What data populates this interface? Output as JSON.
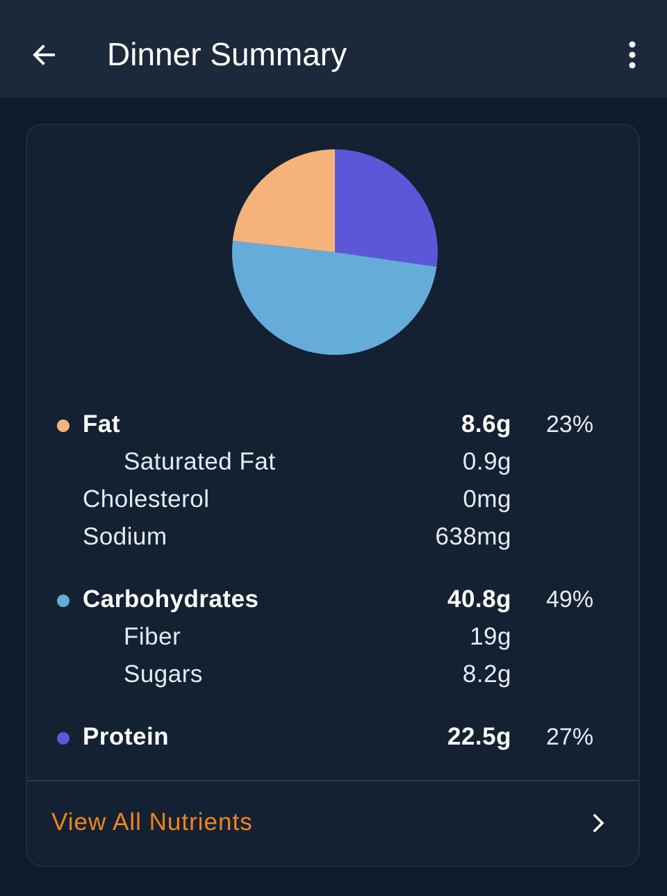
{
  "header": {
    "title": "Dinner Summary",
    "back_icon": "arrow-left-icon",
    "menu_icon": "more-vertical-icon"
  },
  "colors": {
    "fat": "#f5b37a",
    "carbohydrates": "#65acd9",
    "protein": "#5c57d9",
    "accent": "#f0841c"
  },
  "chart_data": {
    "type": "pie",
    "slices": [
      {
        "name": "Protein",
        "value": 27,
        "color": "#5c57d9"
      },
      {
        "name": "Carbohydrates",
        "value": 49,
        "color": "#65acd9"
      },
      {
        "name": "Fat",
        "value": 23,
        "color": "#f5b37a"
      }
    ]
  },
  "nutrients": {
    "fat": {
      "label": "Fat",
      "amount": "8.6g",
      "percent": "23%"
    },
    "saturated_fat": {
      "label": "Saturated Fat",
      "amount": "0.9g"
    },
    "cholesterol": {
      "label": "Cholesterol",
      "amount": "0mg"
    },
    "sodium": {
      "label": "Sodium",
      "amount": "638mg"
    },
    "carbohydrates": {
      "label": "Carbohydrates",
      "amount": "40.8g",
      "percent": "49%"
    },
    "fiber": {
      "label": "Fiber",
      "amount": "19g"
    },
    "sugars": {
      "label": "Sugars",
      "amount": "8.2g"
    },
    "protein": {
      "label": "Protein",
      "amount": "22.5g",
      "percent": "27%"
    }
  },
  "footer": {
    "label": "View All Nutrients",
    "icon": "chevron-right-icon"
  }
}
